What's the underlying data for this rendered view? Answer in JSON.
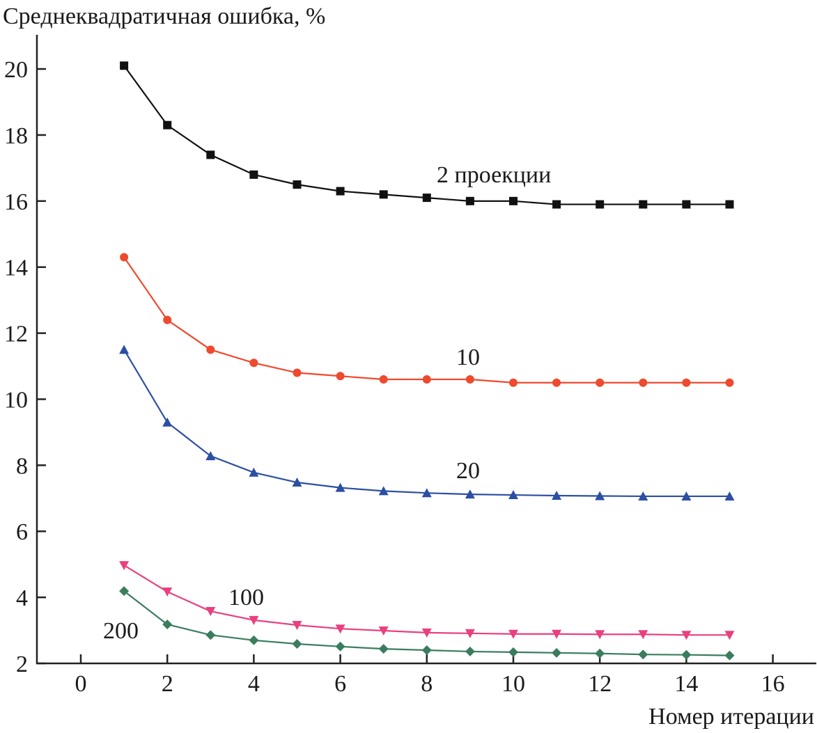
{
  "chart_data": {
    "type": "line",
    "ylabel": "Среднеквадратичная ошибка, %",
    "xlabel": "Номер итерации",
    "xlim": [
      -1,
      17
    ],
    "ylim": [
      2,
      21
    ],
    "xticks": [
      0,
      2,
      4,
      6,
      8,
      10,
      12,
      14,
      16
    ],
    "yticks": [
      2,
      4,
      6,
      8,
      10,
      12,
      14,
      16,
      18,
      20
    ],
    "grid": false,
    "x": [
      1,
      2,
      3,
      4,
      5,
      6,
      7,
      8,
      9,
      10,
      11,
      12,
      13,
      14,
      15
    ],
    "series": [
      {
        "name": "2 проекции",
        "color": "#111111",
        "marker": "square",
        "values": [
          20.1,
          18.3,
          17.4,
          16.8,
          16.5,
          16.3,
          16.2,
          16.1,
          16.0,
          16.0,
          15.9,
          15.9,
          15.9,
          15.9,
          15.9
        ]
      },
      {
        "name": "10",
        "color": "#ee4a2e",
        "marker": "circle",
        "values": [
          14.3,
          12.4,
          11.5,
          11.1,
          10.8,
          10.7,
          10.6,
          10.6,
          10.6,
          10.5,
          10.5,
          10.5,
          10.5,
          10.5,
          10.5
        ]
      },
      {
        "name": "20",
        "color": "#2c4fa3",
        "marker": "triangle-up",
        "values": [
          11.5,
          9.3,
          8.28,
          7.78,
          7.48,
          7.32,
          7.22,
          7.16,
          7.12,
          7.1,
          7.08,
          7.07,
          7.06,
          7.06,
          7.06
        ]
      },
      {
        "name": "100",
        "color": "#e9407f",
        "marker": "triangle-down",
        "values": [
          4.97,
          4.17,
          3.58,
          3.31,
          3.16,
          3.05,
          2.99,
          2.93,
          2.91,
          2.89,
          2.89,
          2.88,
          2.88,
          2.86,
          2.86
        ]
      },
      {
        "name": "200",
        "color": "#3a7d5e",
        "marker": "diamond",
        "values": [
          4.19,
          3.18,
          2.86,
          2.7,
          2.59,
          2.51,
          2.44,
          2.4,
          2.36,
          2.34,
          2.32,
          2.3,
          2.27,
          2.26,
          2.24
        ]
      }
    ]
  }
}
